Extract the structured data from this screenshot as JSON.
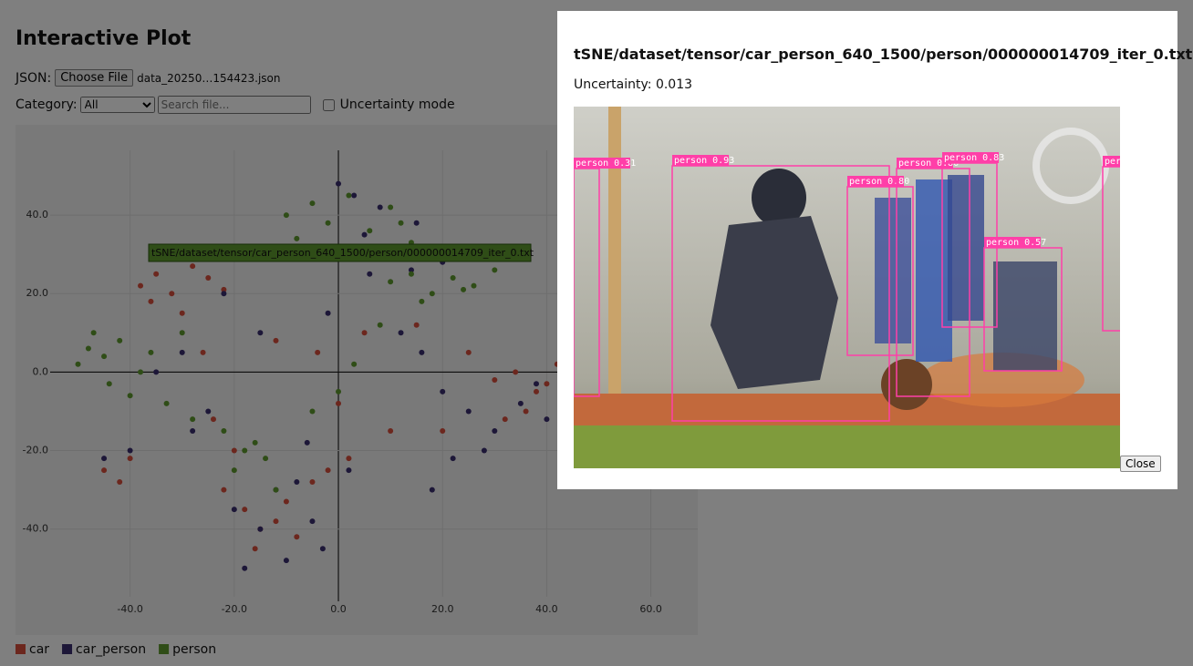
{
  "header": {
    "title": "Interactive Plot"
  },
  "controls": {
    "json_label": "JSON:",
    "file_button": "Choose File",
    "file_name": "data_20250…154423.json",
    "category_label": "Category:",
    "category_value": "All",
    "search_placeholder": "Search file...",
    "uncertainty_label": "Uncertainty mode"
  },
  "chart_data": {
    "type": "scatter",
    "xlim": [
      -62,
      69
    ],
    "ylim": [
      -67,
      63
    ],
    "xticks": [
      {
        "value": -40,
        "label": "-40.0"
      },
      {
        "value": -20,
        "label": "-20.0"
      },
      {
        "value": 0,
        "label": "0.0"
      },
      {
        "value": 20,
        "label": "20.0"
      },
      {
        "value": 40,
        "label": "40.0"
      },
      {
        "value": 60,
        "label": "60.0"
      }
    ],
    "yticks": [
      {
        "value": -40,
        "label": "-40.0"
      },
      {
        "value": -20,
        "label": "-20.0"
      },
      {
        "value": 0,
        "label": "0.0"
      },
      {
        "value": 20,
        "label": "20.0"
      },
      {
        "value": 40,
        "label": "40.0"
      }
    ],
    "grid": true,
    "tooltip": "tSNE/dataset/tensor/car_person_640_1500/person/000000014709_iter_0.txt",
    "series": [
      {
        "name": "car",
        "color": "#d94f3d",
        "x": [
          -38,
          -35,
          -32,
          -28,
          -25,
          -22,
          -30,
          -36,
          -45,
          -42,
          -40,
          -22,
          -18,
          -15,
          -12,
          -8,
          -5,
          -20,
          -16,
          -10,
          -2,
          2,
          30,
          34,
          38,
          42,
          45,
          36,
          40,
          32,
          0,
          5,
          -4,
          10,
          -12,
          20,
          25,
          -26,
          -24,
          15
        ],
        "values": [
          22,
          25,
          20,
          27,
          24,
          21,
          15,
          18,
          -25,
          -28,
          -22,
          -30,
          -35,
          -40,
          -38,
          -42,
          -28,
          -20,
          -45,
          -33,
          -25,
          -22,
          -2,
          0,
          -5,
          2,
          -8,
          -10,
          -3,
          -12,
          -8,
          10,
          5,
          -15,
          8,
          -15,
          5,
          5,
          -12,
          12
        ]
      },
      {
        "name": "car_person",
        "color": "#3b2f70",
        "x": [
          -20,
          -15,
          -10,
          -5,
          -18,
          -12,
          -8,
          -3,
          20,
          25,
          30,
          35,
          40,
          28,
          22,
          38,
          5,
          10,
          15,
          20,
          8,
          14,
          -30,
          -35,
          -25,
          -40,
          0,
          3,
          -2,
          6,
          12,
          18,
          -22,
          -28,
          45,
          -6,
          2,
          -45,
          16,
          -15
        ],
        "values": [
          -35,
          -40,
          -48,
          -38,
          -50,
          -30,
          -28,
          -45,
          -5,
          -10,
          -15,
          -8,
          -12,
          -20,
          -22,
          -3,
          35,
          30,
          38,
          28,
          42,
          26,
          5,
          0,
          -10,
          -20,
          48,
          45,
          15,
          25,
          10,
          -30,
          20,
          -15,
          -6,
          -18,
          -25,
          -22,
          5,
          10
        ]
      },
      {
        "name": "person",
        "color": "#5f9a2e",
        "x": [
          -48,
          -45,
          -42,
          -50,
          -38,
          -44,
          -36,
          -47,
          -40,
          -33,
          -10,
          -5,
          -2,
          2,
          6,
          10,
          -8,
          4,
          12,
          14,
          10,
          14,
          18,
          22,
          26,
          30,
          16,
          24,
          -18,
          -14,
          -20,
          -16,
          -12,
          -22,
          -5,
          0,
          3,
          -28,
          -30,
          8
        ],
        "values": [
          6,
          4,
          8,
          2,
          0,
          -3,
          5,
          10,
          -6,
          -8,
          40,
          43,
          38,
          45,
          36,
          42,
          34,
          30,
          38,
          33,
          23,
          25,
          20,
          24,
          22,
          26,
          18,
          21,
          -20,
          -22,
          -25,
          -18,
          -30,
          -15,
          -10,
          -5,
          2,
          -12,
          10,
          12
        ]
      }
    ]
  },
  "modal": {
    "title": "tSNE/dataset/tensor/car_person_640_1500/person/000000014709_iter_0.txt",
    "uncertainty": "Uncertainty: 0.013",
    "detections": [
      "person 0.31",
      "person 0.93",
      "person 0.80",
      "person 0.80",
      "person 0.83",
      "person 0.57",
      "person"
    ],
    "close": "Close"
  }
}
